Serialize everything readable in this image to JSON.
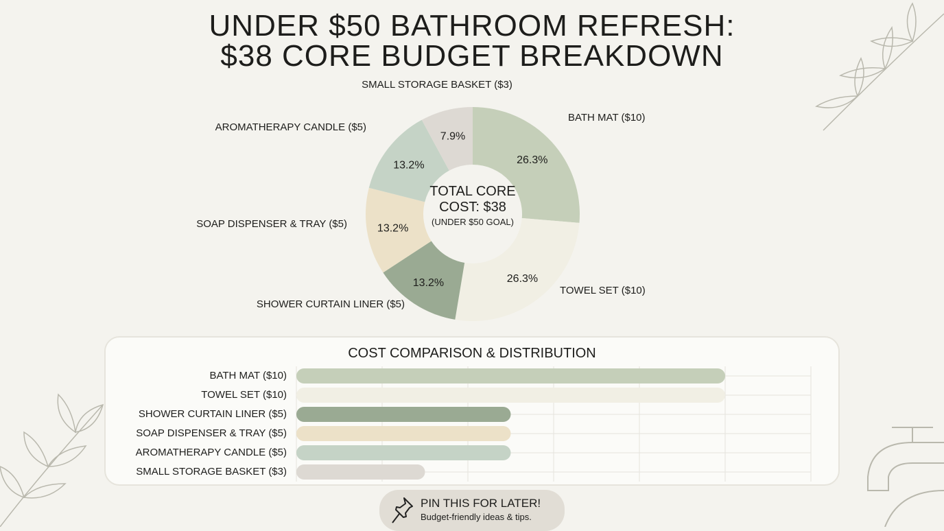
{
  "title_line1": "UNDER $50 BATHROOM REFRESH:",
  "title_line2": "$38 CORE BUDGET BREAKDOWN",
  "chart_data": [
    {
      "type": "pie",
      "donut": true,
      "center_text": {
        "line1": "TOTAL CORE",
        "line2": "COST: $38",
        "line3": "(UNDER $50 GOAL)"
      },
      "slices": [
        {
          "label": "BATH MAT ($10)",
          "value": 10,
          "percent_label": "26.3%",
          "color": "#c5cfb9"
        },
        {
          "label": "TOWEL SET ($10)",
          "value": 10,
          "percent_label": "26.3%",
          "color": "#f1efe4"
        },
        {
          "label": "SHOWER CURTAIN LINER ($5)",
          "value": 5,
          "percent_label": "13.2%",
          "color": "#9aaa93"
        },
        {
          "label": "SOAP DISPENSER & TRAY ($5)",
          "value": 5,
          "percent_label": "13.2%",
          "color": "#ece1c8"
        },
        {
          "label": "AROMATHERAPY CANDLE ($5)",
          "value": 5,
          "percent_label": "13.2%",
          "color": "#c5d3c6"
        },
        {
          "label": "SMALL STORAGE BASKET ($3)",
          "value": 3,
          "percent_label": "7.9%",
          "color": "#ddd9d3"
        }
      ]
    },
    {
      "type": "bar",
      "orientation": "horizontal",
      "title": "COST COMPARISON & DISTRIBUTION",
      "categories": [
        "BATH MAT ($10)",
        "TOWEL SET ($10)",
        "SHOWER CURTAIN LINER ($5)",
        "SOAP DISPENSER & TRAY ($5)",
        "AROMATHERAPY CANDLE ($5)",
        "SMALL STORAGE BASKET ($3)"
      ],
      "values": [
        10,
        10,
        5,
        5,
        5,
        3
      ],
      "colors": [
        "#c5cfb9",
        "#f1efe4",
        "#9aaa93",
        "#ece1c8",
        "#c5d3c6",
        "#ddd9d3"
      ],
      "xlim": [
        0,
        12
      ],
      "grid": true
    }
  ],
  "pin": {
    "title": "PIN THIS FOR LATER!",
    "subtitle": "Budget-friendly ideas & tips.",
    "icon": "pushpin-icon"
  }
}
